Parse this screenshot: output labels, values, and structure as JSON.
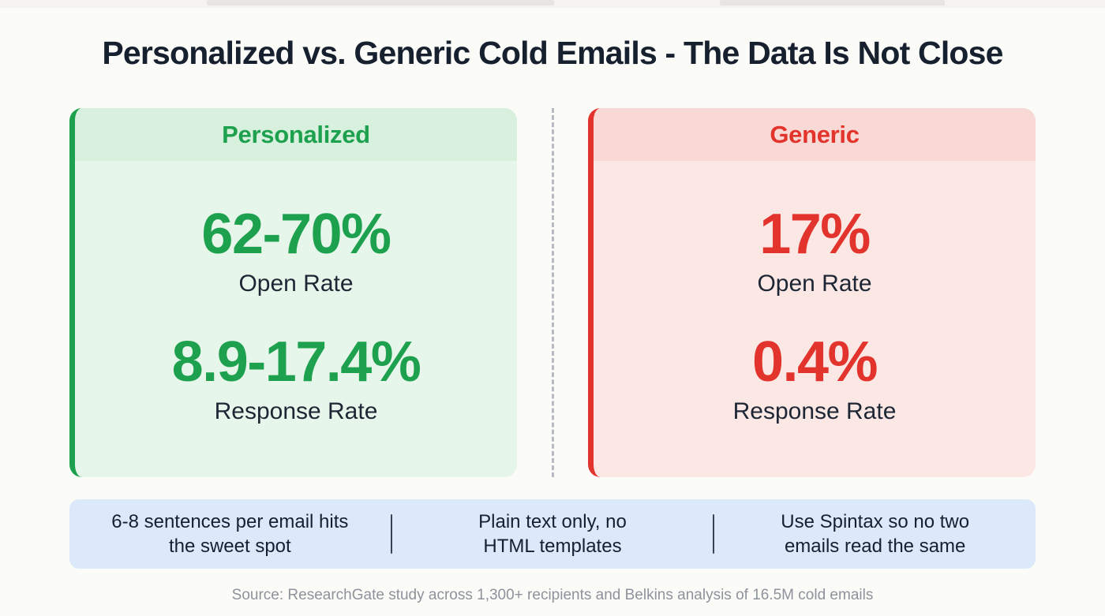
{
  "title": "Personalized vs. Generic Cold Emails - The Data Is Not Close",
  "cards": [
    {
      "label": "Personalized",
      "accent_color": "#1ea14e",
      "bg_color": "#e7f6ea",
      "header_bg_color": "#d8f0de",
      "stats": [
        {
          "value": "62-70%",
          "label": "Open Rate"
        },
        {
          "value": "8.9-17.4%",
          "label": "Response Rate"
        }
      ]
    },
    {
      "label": "Generic",
      "accent_color": "#e2342c",
      "bg_color": "#fbe7e4",
      "header_bg_color": "#f8d9d5",
      "stats": [
        {
          "value": "17%",
          "label": "Open Rate"
        },
        {
          "value": "0.4%",
          "label": "Response Rate"
        }
      ]
    }
  ],
  "tips": [
    "6-8 sentences per email hits the sweet spot",
    "Plain text only, no HTML templates",
    "Use Spintax so no two emails read the same"
  ],
  "source": "Source: ResearchGate study across 1,300+ recipients and Belkins analysis of 16.5M cold emails",
  "colors": {
    "title_text": "#16202f",
    "green": "#1ea14e",
    "red": "#e2342c",
    "tips_bar_bg": "#dbe9fb",
    "source_text": "#8d929b"
  },
  "chart_data": {
    "type": "table",
    "title": "Personalized vs. Generic Cold Emails - The Data Is Not Close",
    "categories": [
      "Open Rate",
      "Response Rate"
    ],
    "series": [
      {
        "name": "Personalized",
        "values": [
          "62-70%",
          "8.9-17.4%"
        ],
        "numeric_ranges": [
          [
            62,
            70
          ],
          [
            8.9,
            17.4
          ]
        ]
      },
      {
        "name": "Generic",
        "values": [
          "17%",
          "0.4%"
        ],
        "numeric_ranges": [
          [
            17,
            17
          ],
          [
            0.4,
            0.4
          ]
        ]
      }
    ],
    "annotations": [
      "6-8 sentences per email hits the sweet spot",
      "Plain text only, no HTML templates",
      "Use Spintax so no two emails read the same"
    ],
    "source": "Source: ResearchGate study across 1,300+ recipients and Belkins analysis of 16.5M cold emails",
    "legend_position": "card-headers",
    "grid": false
  }
}
